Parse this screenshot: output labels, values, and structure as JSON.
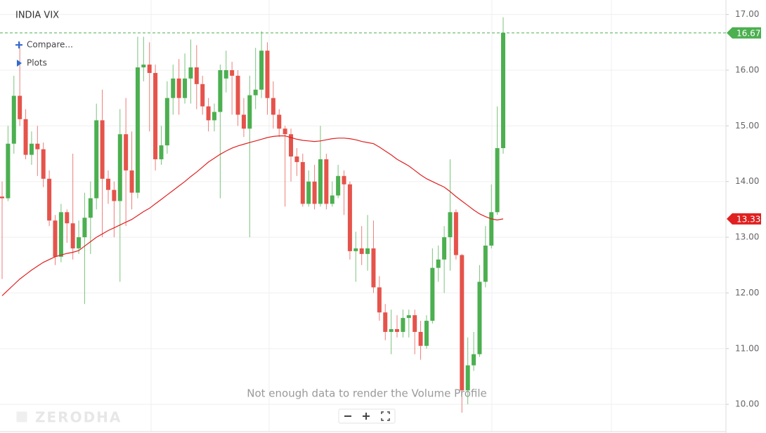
{
  "chart_data": {
    "type": "candlestick",
    "title": "INDIA VIX",
    "menu": [
      "Compare...",
      "Plots"
    ],
    "notice": "Not enough data to render the Volume Profile",
    "watermark": "ZERODHA",
    "up_color": "#4caf50",
    "down_color": "#e5534b",
    "ma_color": "#e02020",
    "grid": true,
    "ylim": [
      9.51,
      17.26
    ],
    "yticks": [
      {
        "value": 10,
        "label": "10.00"
      },
      {
        "value": 11,
        "label": "11.00"
      },
      {
        "value": 12,
        "label": "12.00"
      },
      {
        "value": 13,
        "label": "13.00"
      },
      {
        "value": 14,
        "label": "14.00"
      },
      {
        "value": 15,
        "label": "15.00"
      },
      {
        "value": 16,
        "label": "16.00"
      },
      {
        "value": 17,
        "label": "17.00"
      }
    ],
    "price_tags": [
      {
        "value": 16.67,
        "color": "#4caf50",
        "dashed": true
      },
      {
        "value": 13.33,
        "color": "#e02020",
        "dashed": false
      }
    ],
    "open": [
      13.73,
      13.7,
      14.68,
      15.54,
      15.12,
      14.48,
      14.68,
      14.58,
      14.05,
      13.3,
      12.65,
      13.45,
      13.25,
      12.8,
      13.0,
      13.35,
      13.7,
      15.1,
      14.05,
      13.85,
      13.65,
      14.85,
      14.2,
      13.8,
      16.05,
      16.1,
      15.95,
      14.4,
      14.65,
      15.5,
      15.85,
      15.5,
      15.85,
      16.05,
      15.75,
      15.35,
      15.1,
      15.25,
      15.85,
      16.0,
      15.9,
      15.2,
      14.95,
      15.55,
      15.65,
      16.35,
      15.5,
      15.2,
      14.95,
      14.85,
      14.45,
      14.35,
      13.6,
      14.0,
      13.6,
      14.4,
      13.6,
      13.75,
      14.1,
      13.95,
      12.75,
      12.8,
      12.7,
      12.8,
      12.1,
      11.65,
      11.3,
      11.35,
      11.3,
      11.55,
      11.6,
      11.3,
      11.05,
      11.5,
      12.45,
      12.6,
      13.0,
      13.45,
      12.68,
      10.25,
      10.7,
      10.9,
      12.2,
      12.85,
      13.45,
      14.6
    ],
    "high": [
      14.0,
      15.0,
      15.9,
      16.5,
      15.3,
      14.9,
      15.0,
      14.7,
      14.2,
      13.4,
      13.6,
      13.5,
      14.5,
      13.3,
      13.8,
      14.0,
      15.4,
      15.65,
      14.2,
      14.0,
      15.3,
      15.5,
      14.9,
      16.6,
      16.6,
      16.5,
      16.1,
      15.0,
      15.8,
      16.1,
      16.2,
      16.3,
      16.55,
      16.45,
      15.9,
      15.5,
      15.4,
      16.1,
      16.35,
      16.15,
      16.0,
      15.5,
      15.9,
      16.4,
      16.7,
      16.5,
      15.8,
      15.3,
      15.0,
      14.95,
      14.6,
      14.5,
      14.2,
      14.3,
      15.0,
      14.5,
      14.0,
      14.3,
      14.2,
      14.0,
      13.1,
      13.2,
      13.4,
      13.3,
      12.3,
      11.8,
      11.7,
      11.6,
      11.7,
      11.7,
      11.7,
      11.5,
      11.6,
      12.8,
      12.85,
      13.2,
      14.4,
      13.5,
      12.7,
      11.2,
      11.3,
      12.5,
      13.2,
      13.95,
      15.35,
      16.95
    ],
    "low": [
      12.25,
      13.65,
      14.5,
      15.0,
      14.4,
      14.3,
      14.1,
      13.9,
      13.2,
      12.5,
      12.55,
      12.9,
      12.6,
      12.7,
      11.8,
      12.7,
      13.5,
      13.0,
      13.6,
      13.0,
      12.2,
      13.2,
      13.5,
      13.7,
      15.8,
      14.9,
      14.2,
      14.3,
      14.5,
      15.2,
      15.2,
      15.4,
      15.4,
      15.3,
      15.2,
      14.9,
      14.9,
      13.7,
      15.6,
      15.2,
      15.0,
      14.8,
      13.0,
      15.3,
      15.5,
      15.2,
      14.95,
      14.8,
      13.55,
      14.0,
      14.1,
      13.55,
      13.55,
      13.5,
      13.55,
      13.5,
      13.55,
      13.7,
      13.4,
      12.6,
      12.2,
      12.5,
      12.4,
      12.0,
      11.5,
      11.15,
      10.9,
      11.2,
      11.2,
      11.2,
      10.9,
      10.8,
      11.0,
      11.45,
      12.2,
      12.0,
      12.4,
      12.6,
      9.85,
      10.0,
      10.6,
      10.85,
      12.1,
      12.8,
      13.4,
      14.5
    ],
    "close": [
      13.7,
      14.68,
      15.54,
      15.12,
      14.48,
      14.68,
      14.58,
      14.05,
      13.3,
      12.65,
      13.45,
      13.25,
      12.8,
      13.0,
      13.35,
      13.7,
      15.1,
      14.05,
      13.85,
      13.65,
      14.85,
      14.2,
      13.8,
      16.05,
      16.1,
      15.95,
      14.4,
      14.65,
      15.5,
      15.85,
      15.5,
      15.85,
      16.05,
      15.75,
      15.35,
      15.1,
      15.25,
      16.0,
      16.0,
      15.9,
      15.2,
      14.95,
      15.55,
      15.65,
      16.35,
      15.5,
      15.2,
      14.95,
      14.85,
      14.45,
      14.35,
      13.6,
      14.0,
      13.6,
      14.4,
      13.6,
      13.75,
      14.1,
      13.95,
      12.75,
      12.8,
      12.7,
      12.8,
      12.1,
      11.65,
      11.3,
      11.35,
      11.3,
      11.55,
      11.6,
      11.3,
      11.05,
      11.5,
      12.45,
      12.6,
      13.0,
      13.45,
      12.68,
      10.25,
      10.7,
      10.9,
      12.2,
      12.85,
      13.45,
      14.6,
      16.67
    ],
    "ma": [
      11.95,
      12.05,
      12.15,
      12.25,
      12.33,
      12.41,
      12.48,
      12.55,
      12.6,
      12.65,
      12.68,
      12.71,
      12.73,
      12.76,
      12.84,
      12.92,
      13.0,
      13.06,
      13.12,
      13.17,
      13.22,
      13.27,
      13.32,
      13.39,
      13.46,
      13.52,
      13.6,
      13.68,
      13.76,
      13.84,
      13.92,
      14.0,
      14.09,
      14.17,
      14.26,
      14.35,
      14.42,
      14.49,
      14.55,
      14.6,
      14.64,
      14.67,
      14.7,
      14.73,
      14.76,
      14.79,
      14.81,
      14.82,
      14.82,
      14.79,
      14.76,
      14.74,
      14.73,
      14.72,
      14.73,
      14.75,
      14.77,
      14.78,
      14.78,
      14.77,
      14.75,
      14.72,
      14.7,
      14.68,
      14.62,
      14.55,
      14.48,
      14.4,
      14.34,
      14.28,
      14.2,
      14.12,
      14.05,
      14.0,
      13.95,
      13.9,
      13.82,
      13.73,
      13.65,
      13.57,
      13.49,
      13.42,
      13.37,
      13.33,
      13.31,
      13.33
    ]
  }
}
